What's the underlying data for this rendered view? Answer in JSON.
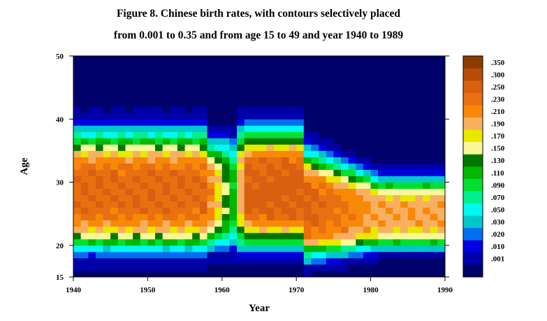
{
  "chart_data": {
    "type": "heatmap",
    "title_lines": [
      "Figure 8. Chinese birth rates, with contours selectively placed",
      "from 0.001 to 0.35 and from age 15 to 49 and year 1940 to 1989"
    ],
    "xlabel": "Year",
    "ylabel": "Age",
    "xlim": [
      1940,
      1990
    ],
    "ylim": [
      15,
      50
    ],
    "x_ticks": [
      1940,
      1950,
      1960,
      1970,
      1980,
      1990
    ],
    "y_ticks": [
      15,
      20,
      30,
      40,
      50
    ],
    "legend": {
      "placement": "right",
      "bins": [
        {
          "label": "",
          "color": "#00006a"
        },
        {
          "label": ".001",
          "color": "#0000a8"
        },
        {
          "label": ".010",
          "color": "#0000e0"
        },
        {
          "label": ".020",
          "color": "#0070f0"
        },
        {
          "label": ".030",
          "color": "#00c8c8"
        },
        {
          "label": ".050",
          "color": "#00f8f0"
        },
        {
          "label": ".070",
          "color": "#00f090"
        },
        {
          "label": ".090",
          "color": "#00e030"
        },
        {
          "label": ".110",
          "color": "#00b800"
        },
        {
          "label": ".130",
          "color": "#007800"
        },
        {
          "label": ".150",
          "color": "#f8f898"
        },
        {
          "label": ".170",
          "color": "#e8e800"
        },
        {
          "label": ".190",
          "color": "#f8b060"
        },
        {
          "label": ".210",
          "color": "#f88808"
        },
        {
          "label": ".230",
          "color": "#e87010"
        },
        {
          "label": ".250",
          "color": "#d86010"
        },
        {
          "label": ".300",
          "color": "#b84c08"
        },
        {
          "label": ".350",
          "color": "#8c3c00"
        }
      ]
    },
    "grid": false
  }
}
